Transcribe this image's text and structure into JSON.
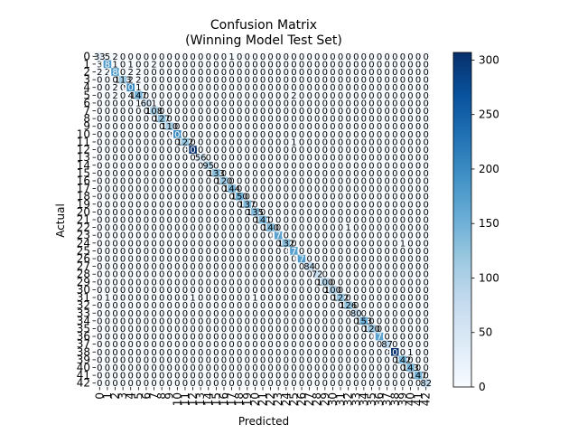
{
  "chart_data": {
    "type": "heatmap",
    "title": "Confusion Matrix",
    "subtitle": "(Winning Model Test Set)",
    "xlabel": "Predicted",
    "ylabel": "Actual",
    "labels": [
      "0",
      "1",
      "2",
      "3",
      "4",
      "5",
      "6",
      "7",
      "8",
      "9",
      "10",
      "11",
      "12",
      "13",
      "14",
      "15",
      "16",
      "17",
      "18",
      "19",
      "20",
      "21",
      "22",
      "23",
      "24",
      "25",
      "26",
      "27",
      "28",
      "29",
      "30",
      "31",
      "32",
      "33",
      "34",
      "35",
      "36",
      "37",
      "38",
      "39",
      "40",
      "41",
      "42"
    ],
    "diagonal": [
      33,
      181,
      180,
      113,
      201,
      147,
      60,
      108,
      127,
      110,
      200,
      122,
      307,
      56,
      95,
      133,
      120,
      144,
      150,
      137,
      135,
      141,
      140,
      170,
      132,
      170,
      175,
      84,
      72,
      100,
      100,
      122,
      126,
      80,
      153,
      120,
      170,
      87,
      303,
      142,
      143,
      147,
      82
    ],
    "off_diagonal": [
      {
        "actual": 0,
        "predicted": 1,
        "value": 5
      },
      {
        "actual": 0,
        "predicted": 2,
        "value": 2
      },
      {
        "actual": 0,
        "predicted": 17,
        "value": 1
      },
      {
        "actual": 1,
        "predicted": 0,
        "value": 3
      },
      {
        "actual": 1,
        "predicted": 2,
        "value": 1
      },
      {
        "actual": 1,
        "predicted": 4,
        "value": 1
      },
      {
        "actual": 1,
        "predicted": 7,
        "value": 2
      },
      {
        "actual": 2,
        "predicted": 0,
        "value": 2
      },
      {
        "actual": 2,
        "predicted": 1,
        "value": 2
      },
      {
        "actual": 2,
        "predicted": 4,
        "value": 2
      },
      {
        "actual": 2,
        "predicted": 5,
        "value": 2
      },
      {
        "actual": 3,
        "predicted": 4,
        "value": 2
      },
      {
        "actual": 3,
        "predicted": 5,
        "value": 2
      },
      {
        "actual": 4,
        "predicted": 2,
        "value": 2
      },
      {
        "actual": 4,
        "predicted": 5,
        "value": 1
      },
      {
        "actual": 5,
        "predicted": 2,
        "value": 2
      },
      {
        "actual": 5,
        "predicted": 4,
        "value": 4
      },
      {
        "actual": 5,
        "predicted": 25,
        "value": 2
      },
      {
        "actual": 6,
        "predicted": 5,
        "value": 1
      },
      {
        "actual": 6,
        "predicted": 7,
        "value": 1
      },
      {
        "actual": 11,
        "predicted": 25,
        "value": 1
      },
      {
        "actual": 22,
        "predicted": 32,
        "value": 1
      },
      {
        "actual": 24,
        "predicted": 39,
        "value": 1
      },
      {
        "actual": 31,
        "predicted": 1,
        "value": 1
      },
      {
        "actual": 31,
        "predicted": 12,
        "value": 1
      },
      {
        "actual": 31,
        "predicted": 20,
        "value": 1
      },
      {
        "actual": 38,
        "predicted": 40,
        "value": 1
      }
    ],
    "colorbar": {
      "min": 0,
      "max": 307,
      "ticks": [
        0,
        50,
        100,
        150,
        200,
        250,
        300
      ],
      "colormap": "Blues"
    }
  }
}
